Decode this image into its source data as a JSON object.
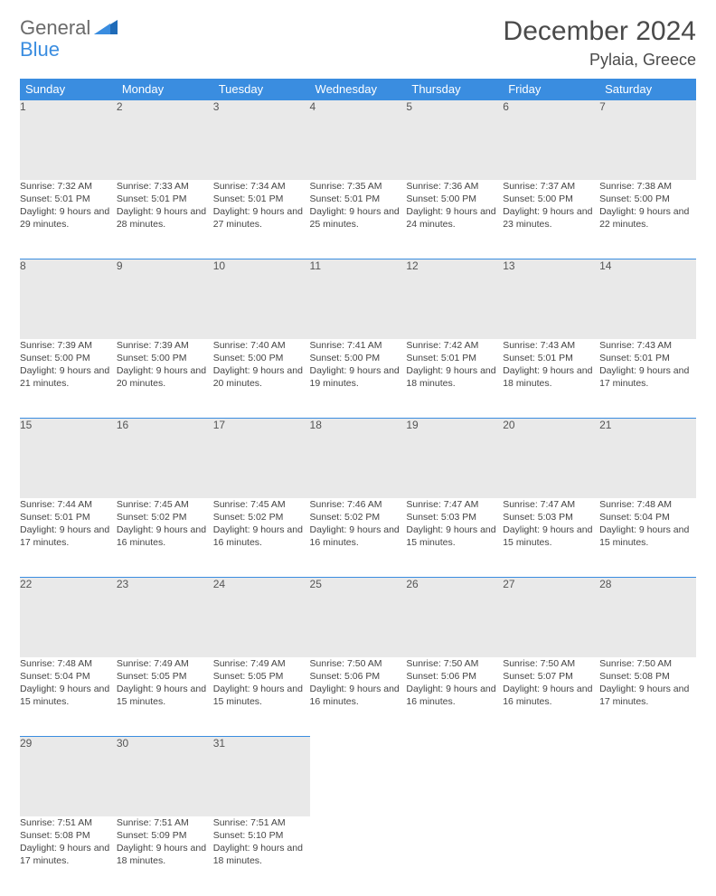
{
  "brand": {
    "word1": "General",
    "word2": "Blue"
  },
  "header": {
    "title": "December 2024",
    "location": "Pylaia, Greece"
  },
  "colors": {
    "header_bg": "#3a8de0",
    "header_fg": "#ffffff",
    "daynum_bg": "#e9e9e9",
    "daynum_border": "#3a8de0",
    "body_text": "#444444",
    "page_bg": "#ffffff",
    "logo_gray": "#6a6a6a",
    "logo_blue": "#3a8de0"
  },
  "typography": {
    "title_fontsize": 30,
    "location_fontsize": 18,
    "weekday_fontsize": 13,
    "daynum_fontsize": 12,
    "cell_fontsize": 10.5
  },
  "calendar": {
    "type": "table",
    "columns": [
      "Sunday",
      "Monday",
      "Tuesday",
      "Wednesday",
      "Thursday",
      "Friday",
      "Saturday"
    ],
    "weeks": [
      [
        {
          "n": "1",
          "sr": "7:32 AM",
          "ss": "5:01 PM",
          "dl": "9 hours and 29 minutes."
        },
        {
          "n": "2",
          "sr": "7:33 AM",
          "ss": "5:01 PM",
          "dl": "9 hours and 28 minutes."
        },
        {
          "n": "3",
          "sr": "7:34 AM",
          "ss": "5:01 PM",
          "dl": "9 hours and 27 minutes."
        },
        {
          "n": "4",
          "sr": "7:35 AM",
          "ss": "5:01 PM",
          "dl": "9 hours and 25 minutes."
        },
        {
          "n": "5",
          "sr": "7:36 AM",
          "ss": "5:00 PM",
          "dl": "9 hours and 24 minutes."
        },
        {
          "n": "6",
          "sr": "7:37 AM",
          "ss": "5:00 PM",
          "dl": "9 hours and 23 minutes."
        },
        {
          "n": "7",
          "sr": "7:38 AM",
          "ss": "5:00 PM",
          "dl": "9 hours and 22 minutes."
        }
      ],
      [
        {
          "n": "8",
          "sr": "7:39 AM",
          "ss": "5:00 PM",
          "dl": "9 hours and 21 minutes."
        },
        {
          "n": "9",
          "sr": "7:39 AM",
          "ss": "5:00 PM",
          "dl": "9 hours and 20 minutes."
        },
        {
          "n": "10",
          "sr": "7:40 AM",
          "ss": "5:00 PM",
          "dl": "9 hours and 20 minutes."
        },
        {
          "n": "11",
          "sr": "7:41 AM",
          "ss": "5:00 PM",
          "dl": "9 hours and 19 minutes."
        },
        {
          "n": "12",
          "sr": "7:42 AM",
          "ss": "5:01 PM",
          "dl": "9 hours and 18 minutes."
        },
        {
          "n": "13",
          "sr": "7:43 AM",
          "ss": "5:01 PM",
          "dl": "9 hours and 18 minutes."
        },
        {
          "n": "14",
          "sr": "7:43 AM",
          "ss": "5:01 PM",
          "dl": "9 hours and 17 minutes."
        }
      ],
      [
        {
          "n": "15",
          "sr": "7:44 AM",
          "ss": "5:01 PM",
          "dl": "9 hours and 17 minutes."
        },
        {
          "n": "16",
          "sr": "7:45 AM",
          "ss": "5:02 PM",
          "dl": "9 hours and 16 minutes."
        },
        {
          "n": "17",
          "sr": "7:45 AM",
          "ss": "5:02 PM",
          "dl": "9 hours and 16 minutes."
        },
        {
          "n": "18",
          "sr": "7:46 AM",
          "ss": "5:02 PM",
          "dl": "9 hours and 16 minutes."
        },
        {
          "n": "19",
          "sr": "7:47 AM",
          "ss": "5:03 PM",
          "dl": "9 hours and 15 minutes."
        },
        {
          "n": "20",
          "sr": "7:47 AM",
          "ss": "5:03 PM",
          "dl": "9 hours and 15 minutes."
        },
        {
          "n": "21",
          "sr": "7:48 AM",
          "ss": "5:04 PM",
          "dl": "9 hours and 15 minutes."
        }
      ],
      [
        {
          "n": "22",
          "sr": "7:48 AM",
          "ss": "5:04 PM",
          "dl": "9 hours and 15 minutes."
        },
        {
          "n": "23",
          "sr": "7:49 AM",
          "ss": "5:05 PM",
          "dl": "9 hours and 15 minutes."
        },
        {
          "n": "24",
          "sr": "7:49 AM",
          "ss": "5:05 PM",
          "dl": "9 hours and 15 minutes."
        },
        {
          "n": "25",
          "sr": "7:50 AM",
          "ss": "5:06 PM",
          "dl": "9 hours and 16 minutes."
        },
        {
          "n": "26",
          "sr": "7:50 AM",
          "ss": "5:06 PM",
          "dl": "9 hours and 16 minutes."
        },
        {
          "n": "27",
          "sr": "7:50 AM",
          "ss": "5:07 PM",
          "dl": "9 hours and 16 minutes."
        },
        {
          "n": "28",
          "sr": "7:50 AM",
          "ss": "5:08 PM",
          "dl": "9 hours and 17 minutes."
        }
      ],
      [
        {
          "n": "29",
          "sr": "7:51 AM",
          "ss": "5:08 PM",
          "dl": "9 hours and 17 minutes."
        },
        {
          "n": "30",
          "sr": "7:51 AM",
          "ss": "5:09 PM",
          "dl": "9 hours and 18 minutes."
        },
        {
          "n": "31",
          "sr": "7:51 AM",
          "ss": "5:10 PM",
          "dl": "9 hours and 18 minutes."
        },
        null,
        null,
        null,
        null
      ]
    ],
    "labels": {
      "sunrise": "Sunrise:",
      "sunset": "Sunset:",
      "daylight": "Daylight:"
    }
  }
}
